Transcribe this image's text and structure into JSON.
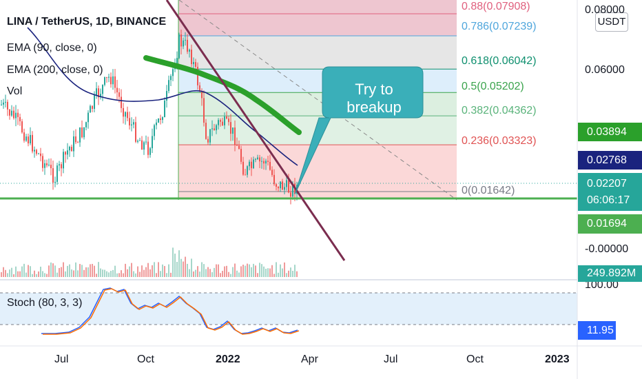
{
  "header": {
    "symbol_line": "LINA / TetherUS, 1D, BINANCE",
    "indicators": [
      "EMA (90, close, 0)",
      "EMA (200, close, 0)",
      "Vol"
    ],
    "oscillator": "Stoch (80, 3, 3)"
  },
  "currency_button": "USDT",
  "colors": {
    "candle_up": "#26a69a",
    "candle_down": "#ef5350",
    "ema90": "#2ba02b",
    "ema200": "#1a237e",
    "downtrend": "#7b2d4f",
    "callout": "#3aafb9",
    "support": "#4caf50"
  },
  "chart_data": {
    "type": "candlestick",
    "symbol": "LINA / TetherUS",
    "interval": "1D",
    "exchange": "BINANCE",
    "x_ticks": [
      "Jul",
      "Oct",
      "2022",
      "Apr",
      "Jul",
      "Oct",
      "2023"
    ],
    "y_ticks": [
      "0.08000",
      "0.06000",
      "-0.00000"
    ],
    "last_price": "0.02207",
    "countdown": "06:06:17",
    "ema90_value": "0.02768",
    "ema200_value": "0.03894",
    "support_value": "0.01694",
    "volume_value": "249.892M",
    "fibonacci": [
      {
        "ratio": "0.88",
        "price": "0.07908",
        "label": "0.88(0.07908)",
        "color": "#e0607e",
        "fill": "#eec6d0"
      },
      {
        "ratio": "0.786",
        "price": "0.07239",
        "label": "0.786(0.07239)",
        "color": "#4fa6dc",
        "fill": "#e6e6e6"
      },
      {
        "ratio": "0.618",
        "price": "0.06042",
        "label": "0.618(0.06042)",
        "color": "#0e8f6e",
        "fill": "#ddeefb"
      },
      {
        "ratio": "0.5",
        "price": "0.05202",
        "label": "0.5(0.05202)",
        "color": "#3aa34c",
        "fill": "#dcefe0"
      },
      {
        "ratio": "0.382",
        "price": "0.04362",
        "label": "0.382(0.04362)",
        "color": "#59b37a",
        "fill": "#e0f1e4"
      },
      {
        "ratio": "0.236",
        "price": "0.03323",
        "label": "0.236(0.03323)",
        "color": "#e05353",
        "fill": "#e2f3e5"
      },
      {
        "ratio": "0",
        "price": "0.01642",
        "label": "0(0.01642)",
        "color": "#787b86",
        "fill": "#fbd8d8"
      }
    ],
    "annotation": "Try to breakup",
    "stoch": {
      "upper": "100.00",
      "value": "11.95"
    }
  }
}
